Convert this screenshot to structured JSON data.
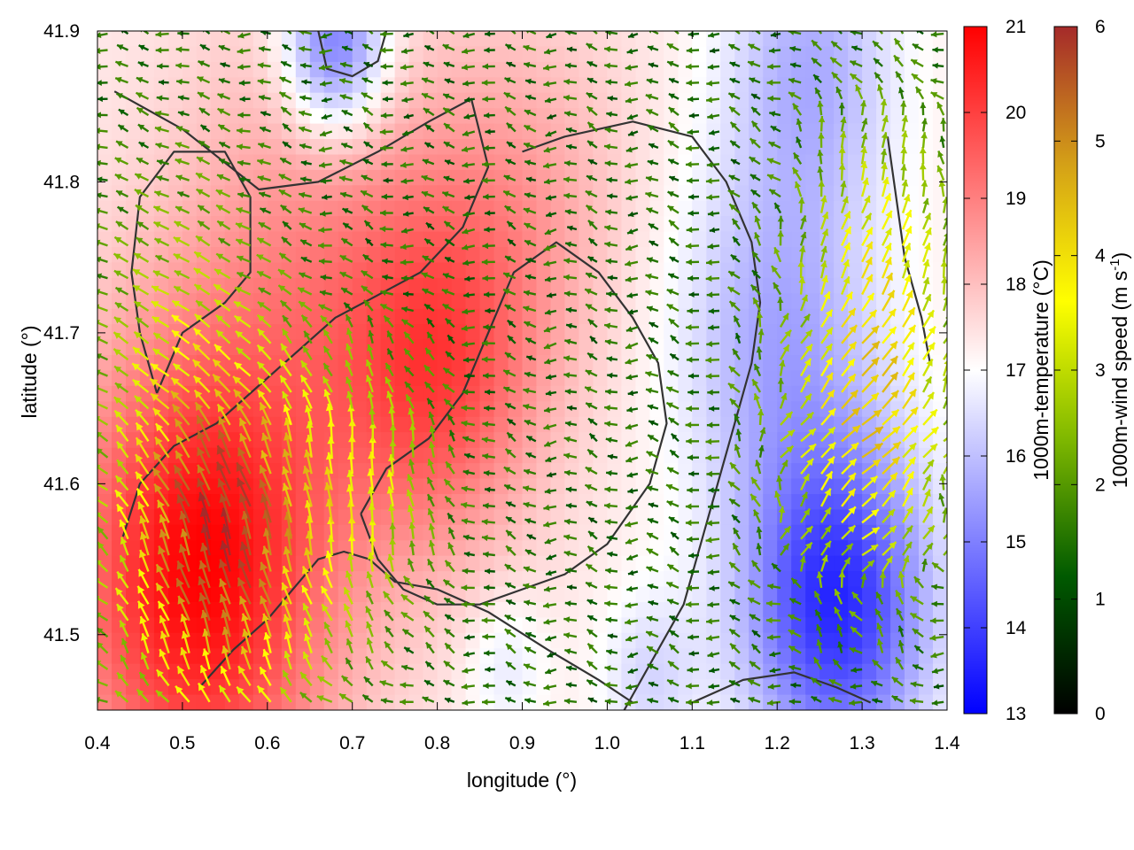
{
  "chart_data": {
    "type": "heatmap",
    "title": "",
    "xlabel": "longitude (°)",
    "ylabel": "latitude (°)",
    "xlim": [
      0.4,
      1.4
    ],
    "ylim": [
      41.45,
      41.9
    ],
    "x_ticks": [
      {
        "value": 0.4,
        "label": "0.4"
      },
      {
        "value": 0.5,
        "label": "0.5"
      },
      {
        "value": 0.6,
        "label": "0.6"
      },
      {
        "value": 0.7,
        "label": "0.7"
      },
      {
        "value": 0.8,
        "label": "0.8"
      },
      {
        "value": 0.9,
        "label": "0.9"
      },
      {
        "value": 1.0,
        "label": "1.0"
      },
      {
        "value": 1.1,
        "label": "1.1"
      },
      {
        "value": 1.2,
        "label": "1.2"
      },
      {
        "value": 1.3,
        "label": "1.3"
      },
      {
        "value": 1.4,
        "label": "1.4"
      }
    ],
    "y_ticks": [
      {
        "value": 41.5,
        "label": "41.5"
      },
      {
        "value": 41.6,
        "label": "41.6"
      },
      {
        "value": 41.7,
        "label": "41.7"
      },
      {
        "value": 41.8,
        "label": "41.8"
      },
      {
        "value": 41.9,
        "label": "41.9"
      }
    ],
    "grid": false,
    "temperature_colorbar": {
      "label": "1000m-temperature (°C)",
      "range": [
        13,
        21
      ],
      "colors": [
        "#0000ff",
        "#ffffff",
        "#ff0000"
      ],
      "ticks": [
        {
          "value": 13,
          "label": "13"
        },
        {
          "value": 14,
          "label": "14"
        },
        {
          "value": 15,
          "label": "15"
        },
        {
          "value": 16,
          "label": "16"
        },
        {
          "value": 17,
          "label": "17"
        },
        {
          "value": 18,
          "label": "18"
        },
        {
          "value": 19,
          "label": "19"
        },
        {
          "value": 20,
          "label": "20"
        },
        {
          "value": 21,
          "label": "21"
        }
      ]
    },
    "wind_colorbar": {
      "label_main": "1000m-wind speed (m s",
      "label_sup": "-1",
      "label_end": ")",
      "range": [
        0,
        6
      ],
      "colors": [
        "#000000",
        "#005a00",
        "#7fb800",
        "#ffff00",
        "#d4a017",
        "#a52a2a"
      ],
      "ticks": [
        {
          "value": 0,
          "label": "0"
        },
        {
          "value": 1,
          "label": "1"
        },
        {
          "value": 2,
          "label": "2"
        },
        {
          "value": 3,
          "label": "3"
        },
        {
          "value": 4,
          "label": "4"
        },
        {
          "value": 5,
          "label": "5"
        },
        {
          "value": 6,
          "label": "6"
        }
      ]
    },
    "temperature_field": {
      "background": 17.3,
      "features": [
        {
          "lon": 0.52,
          "lat": 41.54,
          "r": 0.16,
          "amp": 3.6
        },
        {
          "lon": 0.8,
          "lat": 41.67,
          "r": 0.12,
          "amp": 2.2
        },
        {
          "lon": 0.65,
          "lat": 41.76,
          "r": 0.16,
          "amp": 1.2
        },
        {
          "lon": 0.9,
          "lat": 41.79,
          "r": 0.13,
          "amp": 1.0
        },
        {
          "lon": 1.27,
          "lat": 41.52,
          "r": 0.11,
          "amp": -3.6
        },
        {
          "lon": 1.2,
          "lat": 41.7,
          "r": 0.12,
          "amp": -1.6
        },
        {
          "lon": 0.68,
          "lat": 41.89,
          "r": 0.06,
          "amp": -2.8
        },
        {
          "lon": 1.24,
          "lat": 41.88,
          "r": 0.1,
          "amp": -1.5
        },
        {
          "lon": 1.05,
          "lat": 41.47,
          "r": 0.06,
          "amp": -0.9
        },
        {
          "lon": 0.88,
          "lat": 41.48,
          "r": 0.05,
          "amp": -0.7
        }
      ]
    },
    "wind_field": {
      "spacing_lon": 0.024,
      "spacing_lat": 0.0108,
      "jets": [
        {
          "lon": 0.55,
          "lat": 41.56,
          "r": 0.12,
          "speed": 4.4,
          "dir_deg": 92
        },
        {
          "lon": 0.72,
          "lat": 41.6,
          "r": 0.08,
          "speed": 1.6,
          "dir_deg": 80
        },
        {
          "lon": 1.3,
          "lat": 41.63,
          "r": 0.1,
          "speed": 2.6,
          "dir_deg": 30
        },
        {
          "lon": 1.32,
          "lat": 41.76,
          "r": 0.09,
          "speed": 1.6,
          "dir_deg": 60
        },
        {
          "lon": 0.5,
          "lat": 41.72,
          "r": 0.1,
          "speed": 0.9,
          "dir_deg": 150
        }
      ],
      "base_speed": 1.8,
      "base_dir_deg": 170
    },
    "contours": [
      {
        "name": "terrain-outline-main",
        "points": [
          [
            0.43,
            41.565
          ],
          [
            0.45,
            41.6
          ],
          [
            0.49,
            41.625
          ],
          [
            0.54,
            41.64
          ],
          [
            0.59,
            41.665
          ],
          [
            0.64,
            41.69
          ],
          [
            0.68,
            41.71
          ],
          [
            0.73,
            41.725
          ],
          [
            0.78,
            41.74
          ],
          [
            0.83,
            41.77
          ],
          [
            0.86,
            41.81
          ],
          [
            0.84,
            41.855
          ],
          [
            0.79,
            41.84
          ],
          [
            0.73,
            41.82
          ],
          [
            0.66,
            41.8
          ],
          [
            0.59,
            41.795
          ],
          [
            0.5,
            41.835
          ],
          [
            0.42,
            41.86
          ]
        ]
      },
      {
        "name": "terrain-outline-west",
        "points": [
          [
            0.47,
            41.66
          ],
          [
            0.5,
            41.7
          ],
          [
            0.55,
            41.72
          ],
          [
            0.58,
            41.74
          ],
          [
            0.58,
            41.79
          ],
          [
            0.55,
            41.82
          ],
          [
            0.49,
            41.82
          ],
          [
            0.45,
            41.79
          ],
          [
            0.44,
            41.74
          ],
          [
            0.45,
            41.7
          ],
          [
            0.47,
            41.66
          ]
        ]
      },
      {
        "name": "terrain-outline-centre",
        "points": [
          [
            0.71,
            41.58
          ],
          [
            0.74,
            41.61
          ],
          [
            0.79,
            41.63
          ],
          [
            0.83,
            41.66
          ],
          [
            0.86,
            41.7
          ],
          [
            0.89,
            41.74
          ],
          [
            0.94,
            41.76
          ],
          [
            0.99,
            41.74
          ],
          [
            1.03,
            41.71
          ],
          [
            1.06,
            41.68
          ],
          [
            1.07,
            41.64
          ],
          [
            1.05,
            41.6
          ],
          [
            1.0,
            41.56
          ],
          [
            0.95,
            41.54
          ],
          [
            0.9,
            41.53
          ],
          [
            0.85,
            41.52
          ],
          [
            0.8,
            41.52
          ],
          [
            0.76,
            41.53
          ],
          [
            0.73,
            41.55
          ],
          [
            0.71,
            41.58
          ]
        ]
      },
      {
        "name": "terrain-outline-south",
        "points": [
          [
            0.52,
            41.465
          ],
          [
            0.56,
            41.49
          ],
          [
            0.6,
            41.51
          ],
          [
            0.63,
            41.53
          ],
          [
            0.66,
            41.55
          ],
          [
            0.69,
            41.555
          ],
          [
            0.72,
            41.55
          ],
          [
            0.75,
            41.535
          ],
          [
            0.8,
            41.53
          ],
          [
            0.86,
            41.515
          ],
          [
            0.93,
            41.49
          ],
          [
            0.99,
            41.47
          ],
          [
            1.03,
            41.455
          ]
        ]
      },
      {
        "name": "terrain-outline-east",
        "points": [
          [
            1.02,
            41.45
          ],
          [
            1.06,
            41.49
          ],
          [
            1.09,
            41.52
          ],
          [
            1.11,
            41.56
          ],
          [
            1.13,
            41.6
          ],
          [
            1.15,
            41.64
          ],
          [
            1.17,
            41.68
          ],
          [
            1.18,
            41.72
          ],
          [
            1.17,
            41.76
          ],
          [
            1.14,
            41.8
          ],
          [
            1.1,
            41.83
          ],
          [
            1.03,
            41.84
          ],
          [
            0.95,
            41.83
          ],
          [
            0.9,
            41.82
          ]
        ]
      },
      {
        "name": "terrain-outline-southeast",
        "points": [
          [
            1.1,
            41.455
          ],
          [
            1.16,
            41.47
          ],
          [
            1.22,
            41.475
          ],
          [
            1.27,
            41.465
          ],
          [
            1.31,
            41.455
          ]
        ]
      },
      {
        "name": "terrain-outline-northeast",
        "points": [
          [
            1.33,
            41.83
          ],
          [
            1.34,
            41.79
          ],
          [
            1.35,
            41.75
          ],
          [
            1.37,
            41.71
          ],
          [
            1.38,
            41.68
          ]
        ]
      },
      {
        "name": "terrain-outline-north",
        "points": [
          [
            0.66,
            41.9
          ],
          [
            0.67,
            41.875
          ],
          [
            0.7,
            41.87
          ],
          [
            0.73,
            41.88
          ],
          [
            0.74,
            41.9
          ]
        ]
      }
    ]
  }
}
